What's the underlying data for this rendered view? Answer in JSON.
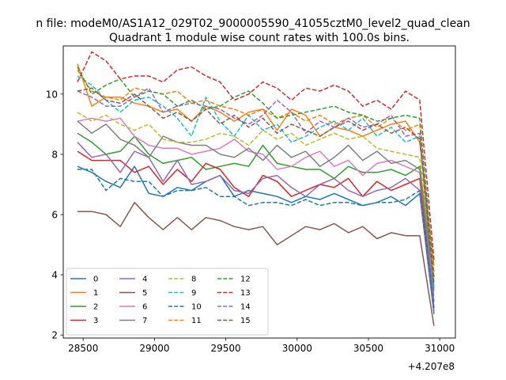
{
  "figure": {
    "suptitle": "n file: modeM0/AS1A12_029T02_9000005590_41055cztM0_level2_quad_clean",
    "offset_label": "+4.207e8"
  },
  "chart_data": {
    "type": "line",
    "title": "Quadrant 1 module wise count rates with 100.0s bins.",
    "xlabel": "",
    "ylabel": "",
    "xlim": [
      28360,
      31110
    ],
    "ylim": [
      1.9,
      11.6
    ],
    "xticks": [
      28500,
      29000,
      29500,
      30000,
      30500,
      31000
    ],
    "xtick_labels": [
      "28500",
      "29000",
      "29500",
      "30000",
      "30500",
      "31000"
    ],
    "yticks": [
      2,
      4,
      6,
      8,
      10
    ],
    "ytick_labels": [
      "2",
      "4",
      "6",
      "8",
      "10"
    ],
    "x_offset": "+4.207e8",
    "grid": false,
    "legend": {
      "location": "lower-left",
      "columns": 4
    },
    "x": [
      28460,
      28560,
      28660,
      28760,
      28860,
      28960,
      29060,
      29160,
      29260,
      29360,
      29460,
      29560,
      29660,
      29760,
      29860,
      29960,
      30060,
      30160,
      30260,
      30360,
      30460,
      30560,
      30660,
      30760,
      30860,
      30960
    ],
    "series": [
      {
        "name": "0",
        "color": "#1f77b4",
        "dash": "solid",
        "values": [
          7.6,
          7.4,
          7.1,
          6.9,
          7.6,
          6.7,
          6.6,
          6.9,
          6.8,
          7.1,
          7.3,
          6.6,
          6.8,
          6.7,
          6.6,
          6.4,
          6.6,
          6.5,
          6.7,
          6.5,
          6.3,
          6.4,
          6.6,
          6.3,
          6.7,
          2.7
        ]
      },
      {
        "name": "1",
        "color": "#ff7f0e",
        "dash": "solid",
        "values": [
          11.0,
          9.6,
          9.9,
          9.9,
          9.7,
          9.6,
          9.4,
          9.5,
          9.1,
          9.6,
          9.4,
          9.1,
          9.4,
          9.5,
          8.8,
          9.5,
          9.3,
          8.6,
          8.9,
          8.8,
          8.6,
          8.8,
          9.0,
          9.1,
          8.4,
          4.3
        ]
      },
      {
        "name": "2",
        "color": "#2ca02c",
        "dash": "solid",
        "values": [
          8.7,
          8.4,
          8.0,
          8.1,
          8.6,
          8.0,
          7.7,
          7.8,
          7.9,
          7.5,
          7.6,
          7.7,
          7.6,
          8.3,
          7.7,
          7.6,
          7.5,
          7.5,
          7.2,
          7.6,
          7.4,
          7.4,
          7.5,
          7.3,
          7.6,
          3.6
        ]
      },
      {
        "name": "3",
        "color": "#d62728",
        "dash": "solid",
        "values": [
          8.1,
          7.8,
          7.8,
          7.8,
          7.4,
          7.6,
          7.0,
          7.5,
          7.1,
          7.7,
          7.5,
          6.9,
          6.6,
          7.3,
          7.1,
          6.6,
          6.8,
          7.0,
          6.9,
          7.2,
          6.6,
          7.1,
          6.8,
          7.0,
          7.2,
          2.9
        ]
      },
      {
        "name": "4",
        "color": "#9467bd",
        "dash": "solid",
        "values": [
          8.4,
          7.9,
          8.0,
          7.4,
          8.1,
          7.9,
          7.1,
          7.8,
          7.0,
          7.1,
          7.3,
          6.8,
          6.7,
          7.2,
          7.3,
          6.9,
          6.6,
          7.0,
          7.2,
          6.8,
          6.6,
          6.8,
          6.9,
          7.2,
          6.8,
          2.8
        ]
      },
      {
        "name": "5",
        "color": "#8c564b",
        "dash": "solid",
        "values": [
          6.1,
          6.1,
          6.0,
          5.6,
          6.4,
          5.9,
          5.5,
          5.9,
          5.5,
          5.9,
          5.8,
          5.6,
          5.5,
          5.6,
          5.0,
          5.3,
          5.6,
          5.5,
          5.7,
          5.4,
          5.6,
          5.2,
          5.4,
          5.3,
          5.3,
          2.3
        ]
      },
      {
        "name": "6",
        "color": "#e377c2",
        "dash": "solid",
        "values": [
          9.1,
          9.2,
          9.1,
          9.2,
          8.6,
          8.3,
          8.2,
          8.2,
          8.0,
          8.1,
          8.2,
          8.5,
          8.1,
          8.0,
          7.5,
          7.6,
          7.9,
          8.1,
          7.6,
          7.8,
          7.3,
          7.7,
          7.8,
          7.6,
          7.4,
          3.3
        ]
      },
      {
        "name": "7",
        "color": "#7f7f7f",
        "dash": "solid",
        "values": [
          9.1,
          8.7,
          9.0,
          8.5,
          8.3,
          7.9,
          8.6,
          8.4,
          8.3,
          8.3,
          8.0,
          7.9,
          8.2,
          7.8,
          8.3,
          7.9,
          8.1,
          7.6,
          7.9,
          8.3,
          7.8,
          8.1,
          7.7,
          7.8,
          7.5,
          3.1
        ]
      },
      {
        "name": "8",
        "color": "#bcbd22",
        "dash": "dashed",
        "values": [
          9.4,
          9.1,
          9.3,
          9.0,
          8.8,
          9.0,
          8.5,
          8.4,
          8.4,
          8.5,
          8.7,
          8.6,
          8.3,
          8.8,
          8.5,
          8.7,
          8.3,
          8.5,
          8.7,
          8.5,
          8.6,
          8.2,
          8.1,
          8.0,
          7.9,
          3.8
        ]
      },
      {
        "name": "9",
        "color": "#17becf",
        "dash": "dashed",
        "values": [
          10.6,
          10.3,
          9.8,
          9.4,
          9.8,
          9.9,
          9.6,
          9.2,
          8.6,
          9.9,
          9.1,
          8.6,
          9.3,
          8.8,
          9.0,
          8.4,
          8.6,
          8.9,
          9.1,
          8.8,
          9.2,
          8.6,
          8.9,
          8.4,
          8.6,
          3.5
        ]
      },
      {
        "name": "10",
        "color": "#1f77b4",
        "dash": "dashed",
        "values": [
          7.5,
          7.5,
          6.8,
          7.2,
          7.1,
          7.1,
          6.6,
          6.8,
          6.8,
          6.9,
          6.6,
          6.6,
          6.3,
          6.4,
          6.4,
          6.3,
          6.5,
          6.3,
          6.4,
          6.4,
          6.3,
          6.4,
          6.4,
          6.5,
          6.8,
          2.9
        ]
      },
      {
        "name": "11",
        "color": "#ff7f0e",
        "dash": "dashed",
        "values": [
          10.8,
          10.1,
          9.9,
          9.8,
          10.2,
          10.1,
          10.0,
          10.1,
          9.7,
          9.8,
          9.6,
          9.5,
          9.3,
          9.5,
          9.2,
          9.4,
          9.1,
          9.3,
          9.0,
          9.2,
          9.3,
          8.9,
          9.2,
          8.8,
          9.0,
          4.1
        ]
      },
      {
        "name": "12",
        "color": "#2ca02c",
        "dash": "dashed",
        "values": [
          10.9,
          10.0,
          10.3,
          10.5,
          9.9,
          10.1,
          10.0,
          9.6,
          9.8,
          9.5,
          9.6,
          9.9,
          10.1,
          9.7,
          9.2,
          9.3,
          9.4,
          9.5,
          9.6,
          9.4,
          9.3,
          9.1,
          9.2,
          9.3,
          9.2,
          3.9
        ]
      },
      {
        "name": "13",
        "color": "#d62728",
        "dash": "dashed",
        "values": [
          10.4,
          11.4,
          11.1,
          10.5,
          10.6,
          10.6,
          10.4,
          10.8,
          10.9,
          10.6,
          10.4,
          9.8,
          10.0,
          10.4,
          10.2,
          9.8,
          10.2,
          10.1,
          10.3,
          10.1,
          9.6,
          9.8,
          9.5,
          10.1,
          9.8,
          4.5
        ]
      },
      {
        "name": "14",
        "color": "#9467bd",
        "dash": "dashed",
        "values": [
          10.1,
          9.9,
          9.6,
          9.6,
          9.9,
          10.2,
          9.4,
          9.6,
          9.7,
          9.6,
          9.5,
          9.2,
          9.0,
          9.3,
          9.8,
          9.4,
          8.7,
          9.1,
          8.9,
          9.2,
          8.9,
          9.0,
          9.3,
          8.6,
          8.7,
          3.4
        ]
      },
      {
        "name": "15",
        "color": "#8c564b",
        "dash": "dashed",
        "values": [
          10.1,
          10.2,
          9.8,
          9.7,
          10.0,
          9.6,
          9.2,
          9.4,
          9.1,
          9.5,
          9.0,
          9.3,
          8.9,
          9.2,
          8.7,
          9.0,
          8.8,
          8.6,
          8.9,
          9.1,
          8.8,
          9.0,
          8.7,
          8.9,
          8.5,
          3.7
        ]
      }
    ]
  }
}
